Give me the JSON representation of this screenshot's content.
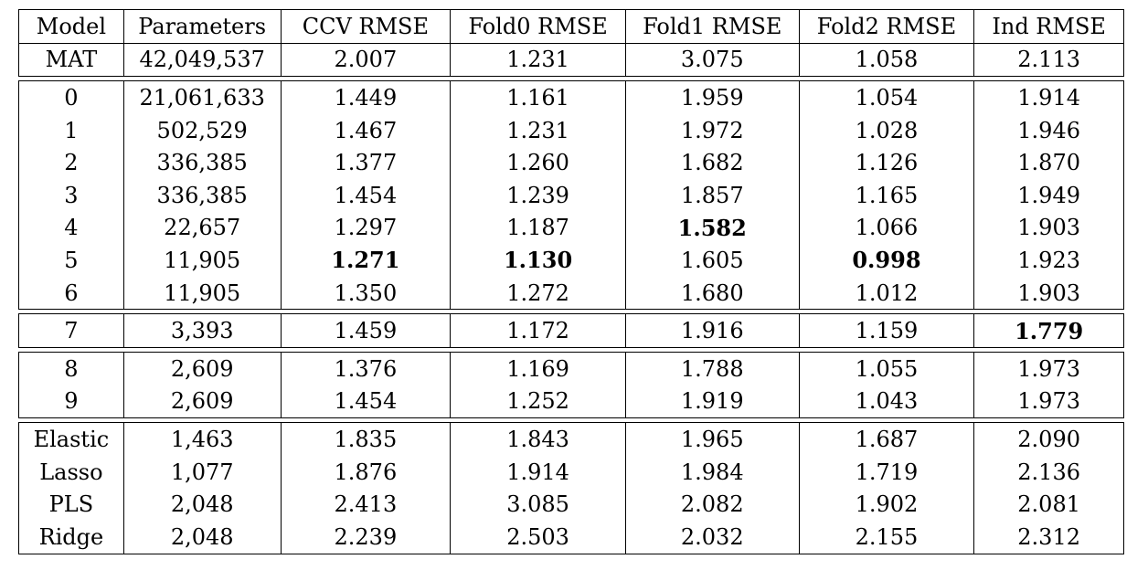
{
  "table": {
    "headers": [
      "Model",
      "Parameters",
      "CCV RMSE",
      "Fold0 RMSE",
      "Fold1 RMSE",
      "Fold2 RMSE",
      "Ind RMSE"
    ],
    "groups": [
      {
        "rows": [
          {
            "model": "MAT",
            "params": "42,049,537",
            "ccv": "2.007",
            "fold0": "1.231",
            "fold1": "3.075",
            "fold2": "1.058",
            "ind": "2.113"
          }
        ]
      },
      {
        "rows": [
          {
            "model": "0",
            "params": "21,061,633",
            "ccv": "1.449",
            "fold0": "1.161",
            "fold1": "1.959",
            "fold2": "1.054",
            "ind": "1.914"
          },
          {
            "model": "1",
            "params": "502,529",
            "ccv": "1.467",
            "fold0": "1.231",
            "fold1": "1.972",
            "fold2": "1.028",
            "ind": "1.946"
          },
          {
            "model": "2",
            "params": "336,385",
            "ccv": "1.377",
            "fold0": "1.260",
            "fold1": "1.682",
            "fold2": "1.126",
            "ind": "1.870"
          },
          {
            "model": "3",
            "params": "336,385",
            "ccv": "1.454",
            "fold0": "1.239",
            "fold1": "1.857",
            "fold2": "1.165",
            "ind": "1.949"
          },
          {
            "model": "4",
            "params": "22,657",
            "ccv": "1.297",
            "fold0": "1.187",
            "fold1": "1.582",
            "fold2": "1.066",
            "ind": "1.903",
            "bold": [
              "fold1"
            ]
          },
          {
            "model": "5",
            "params": "11,905",
            "ccv": "1.271",
            "fold0": "1.130",
            "fold1": "1.605",
            "fold2": "0.998",
            "ind": "1.923",
            "bold": [
              "ccv",
              "fold0",
              "fold2"
            ]
          },
          {
            "model": "6",
            "params": "11,905",
            "ccv": "1.350",
            "fold0": "1.272",
            "fold1": "1.680",
            "fold2": "1.012",
            "ind": "1.903"
          }
        ]
      },
      {
        "rows": [
          {
            "model": "7",
            "params": "3,393",
            "ccv": "1.459",
            "fold0": "1.172",
            "fold1": "1.916",
            "fold2": "1.159",
            "ind": "1.779",
            "bold": [
              "ind"
            ]
          }
        ]
      },
      {
        "rows": [
          {
            "model": "8",
            "params": "2,609",
            "ccv": "1.376",
            "fold0": "1.169",
            "fold1": "1.788",
            "fold2": "1.055",
            "ind": "1.973"
          },
          {
            "model": "9",
            "params": "2,609",
            "ccv": "1.454",
            "fold0": "1.252",
            "fold1": "1.919",
            "fold2": "1.043",
            "ind": "1.973"
          }
        ]
      },
      {
        "rows": [
          {
            "model": "Elastic",
            "params": "1,463",
            "ccv": "1.835",
            "fold0": "1.843",
            "fold1": "1.965",
            "fold2": "1.687",
            "ind": "2.090"
          },
          {
            "model": "Lasso",
            "params": "1,077",
            "ccv": "1.876",
            "fold0": "1.914",
            "fold1": "1.984",
            "fold2": "1.719",
            "ind": "2.136"
          },
          {
            "model": "PLS",
            "params": "2,048",
            "ccv": "2.413",
            "fold0": "3.085",
            "fold1": "2.082",
            "fold2": "1.902",
            "ind": "2.081"
          },
          {
            "model": "Ridge",
            "params": "2,048",
            "ccv": "2.239",
            "fold0": "2.503",
            "fold1": "2.032",
            "fold2": "2.155",
            "ind": "2.312"
          }
        ]
      }
    ]
  }
}
